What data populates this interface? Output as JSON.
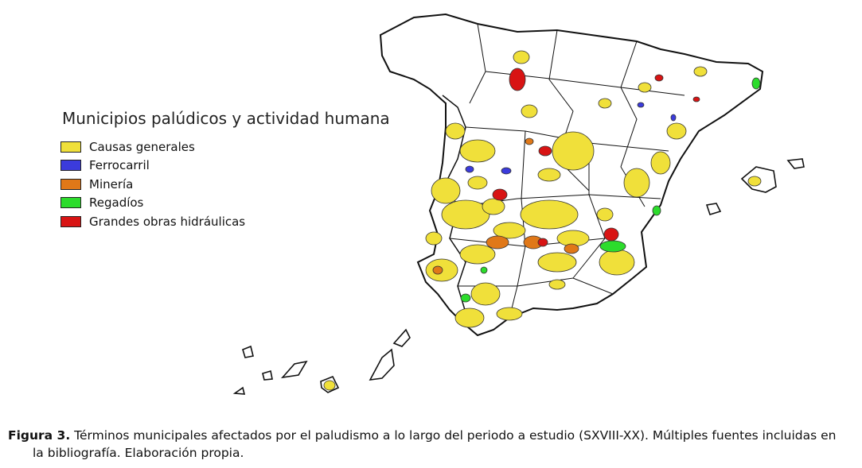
{
  "legend": {
    "title": "Municipios palúdicos y actividad humana",
    "items": [
      {
        "label": "Causas generales",
        "color": "#f0e03a"
      },
      {
        "label": "Ferrocarril",
        "color": "#3b3bdc"
      },
      {
        "label": "Minería",
        "color": "#e07818"
      },
      {
        "label": "Regadíos",
        "color": "#2cdc2c"
      },
      {
        "label": "Grandes obras hidráulicas",
        "color": "#d81414"
      }
    ]
  },
  "caption": {
    "lead": "Figura 3.",
    "text": " Términos municipales afectados por el paludismo a lo largo del periodo a estudio (SXVIII-XX). Múltiples fuentes incluidas en",
    "continuation": "la bibliografía. Elaboración propia."
  }
}
